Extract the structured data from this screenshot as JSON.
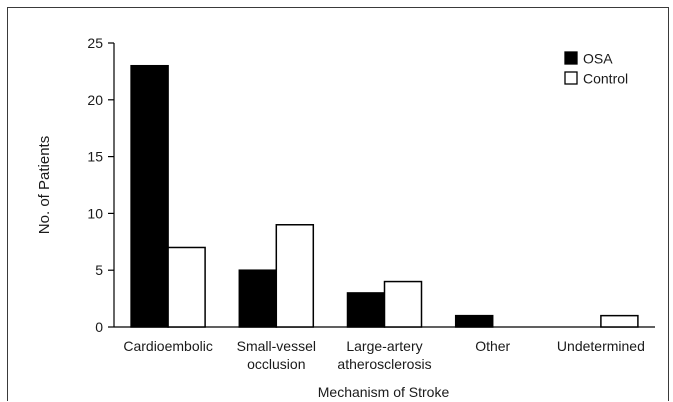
{
  "chart_data": {
    "type": "bar",
    "title": "",
    "xlabel": "Mechanism of Stroke",
    "ylabel": "No. of Patients",
    "categories": [
      [
        "Cardioembolic"
      ],
      [
        "Small-vessel",
        "occlusion"
      ],
      [
        "Large-artery",
        "atherosclerosis"
      ],
      [
        "Other"
      ],
      [
        "Undetermined"
      ]
    ],
    "series": [
      {
        "name": "OSA",
        "values": [
          23,
          5,
          3,
          1,
          0
        ],
        "color": "#000000"
      },
      {
        "name": "Control",
        "values": [
          7,
          9,
          4,
          0,
          1
        ],
        "color": "#ffffff"
      }
    ],
    "ylim": [
      0,
      25
    ],
    "yticks": [
      0,
      5,
      10,
      15,
      20,
      25
    ],
    "grid": false,
    "legend_position": "top-right"
  }
}
